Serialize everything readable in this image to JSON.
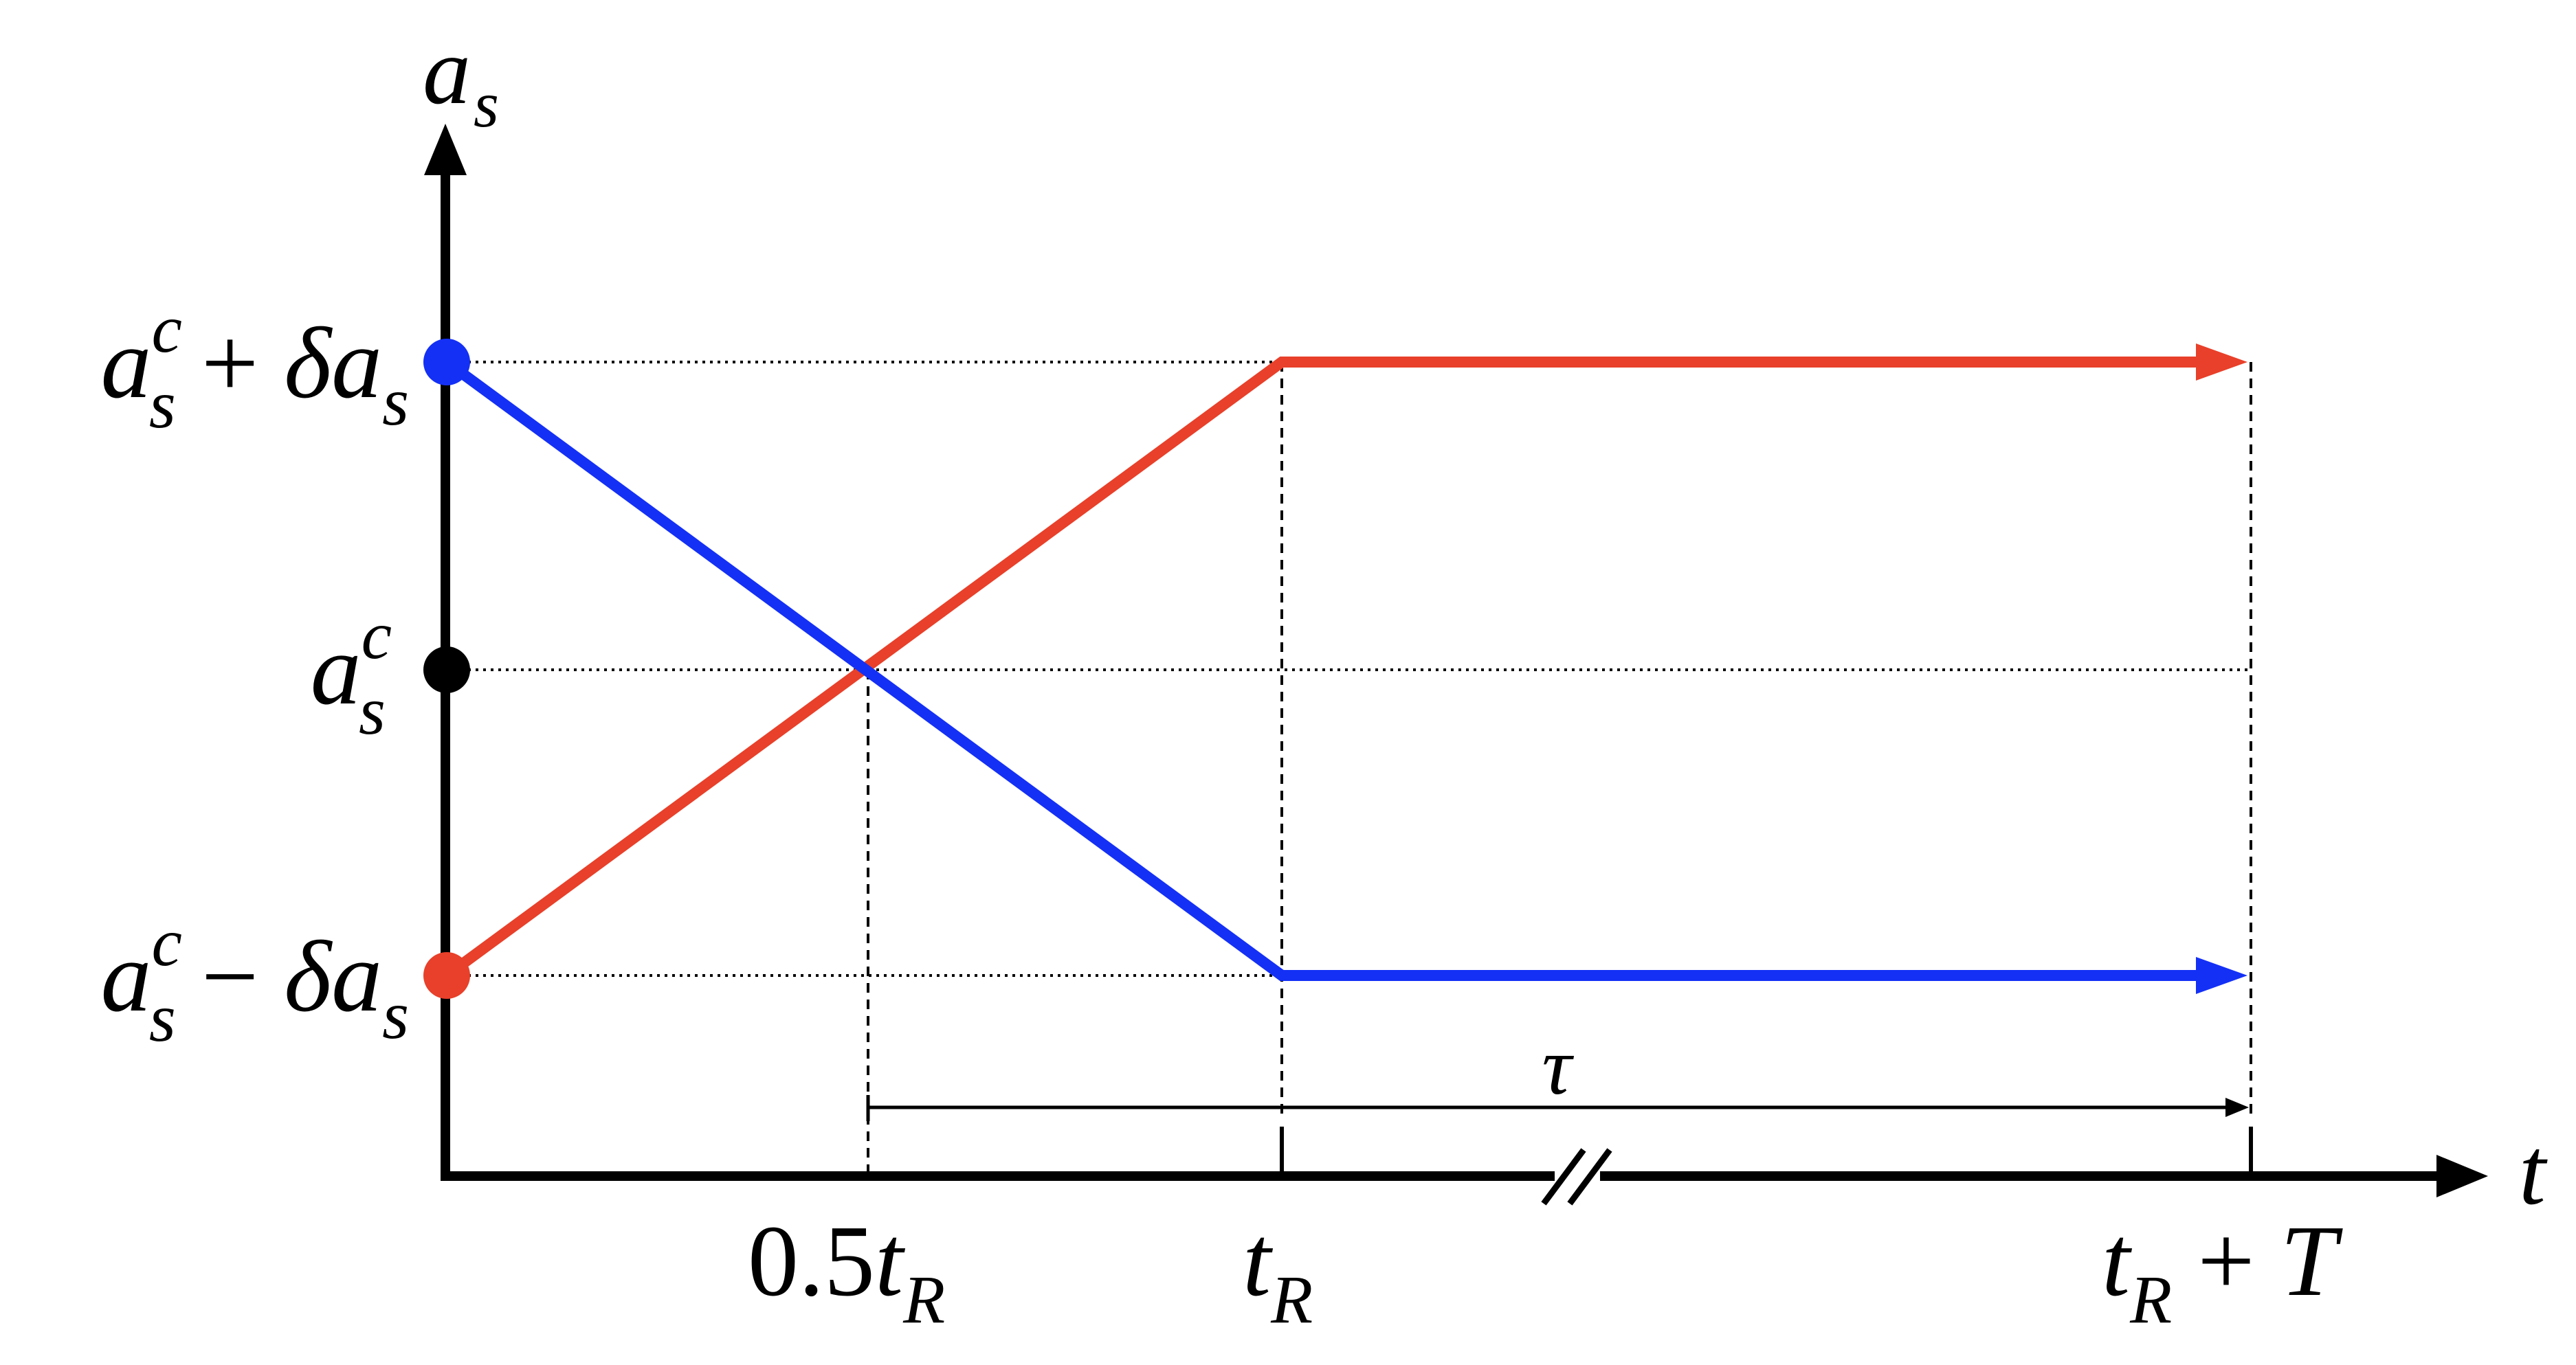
{
  "colors": {
    "axis": "#000000",
    "red_path": "#e8402a",
    "blue_path": "#1430f5",
    "guide": "#000000",
    "center_point": "#000000"
  },
  "diagram": {
    "y_axis": {
      "symbol": "a",
      "subscript": "s"
    },
    "x_axis": {
      "symbol": "t"
    },
    "y_levels": {
      "upper": {
        "base": "a",
        "sub": "s",
        "sup": "c",
        "op": " + ",
        "delta": "δ",
        "tail_base": "a",
        "tail_sub": "s"
      },
      "center": {
        "base": "a",
        "sub": "s",
        "sup": "c"
      },
      "lower": {
        "base": "a",
        "sub": "s",
        "sup": "c",
        "op": " − ",
        "delta": "δ",
        "tail_base": "a",
        "tail_sub": "s"
      }
    },
    "x_ticks": {
      "half": {
        "coef": "0.5",
        "base": "t",
        "sub": "R"
      },
      "tR": {
        "base": "t",
        "sub": "R"
      },
      "end": {
        "base": "t",
        "sub": "R",
        "op": " + ",
        "tail": "T"
      }
    },
    "interval": {
      "label": "τ"
    },
    "axis_break": true,
    "series": [
      {
        "color": "red_path",
        "start_level": "lower",
        "end_level": "upper",
        "ramp_end": "tR"
      },
      {
        "color": "blue_path",
        "start_level": "upper",
        "end_level": "lower",
        "ramp_end": "tR"
      }
    ]
  }
}
